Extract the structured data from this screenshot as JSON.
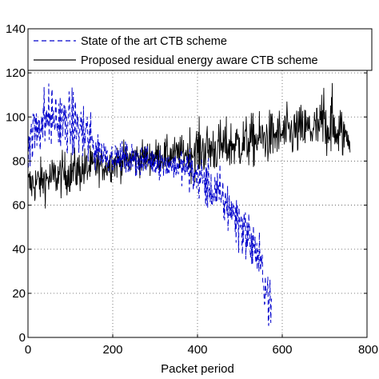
{
  "chart_data": {
    "type": "line",
    "xlabel": "Packet period",
    "ylabel": "",
    "xlim": [
      0,
      800
    ],
    "ylim": [
      0,
      140
    ],
    "xticks": [
      0,
      200,
      400,
      600,
      800
    ],
    "yticks": [
      0,
      20,
      40,
      60,
      80,
      100,
      120,
      140
    ],
    "grid": true,
    "legend_position": "top-right",
    "series": [
      {
        "name": "State of the art CTB scheme",
        "color": "#0000cc",
        "line_style": "dashed",
        "x_range": [
          1,
          575
        ],
        "keypoints_x": [
          0,
          25,
          50,
          80,
          110,
          140,
          160,
          180,
          200,
          230,
          260,
          290,
          320,
          350,
          380,
          400,
          420,
          440,
          460,
          480,
          500,
          520,
          540,
          555,
          565,
          575
        ],
        "keypoints_y": [
          88,
          97,
          100,
          98,
          96,
          91,
          86,
          83,
          82,
          81,
          80,
          80,
          79,
          78,
          76,
          73,
          70,
          66,
          62,
          58,
          52,
          46,
          38,
          28,
          20,
          12
        ]
      },
      {
        "name": "Proposed residual energy aware CTB scheme",
        "color": "#000000",
        "line_style": "solid",
        "x_range": [
          1,
          760
        ],
        "keypoints_x": [
          0,
          50,
          100,
          150,
          200,
          250,
          300,
          350,
          400,
          450,
          500,
          550,
          600,
          650,
          700,
          730,
          760
        ],
        "keypoints_y": [
          69,
          72,
          75,
          77,
          79,
          81,
          82,
          83,
          85,
          86,
          88,
          90,
          92,
          94,
          95,
          93,
          91
        ]
      }
    ]
  }
}
